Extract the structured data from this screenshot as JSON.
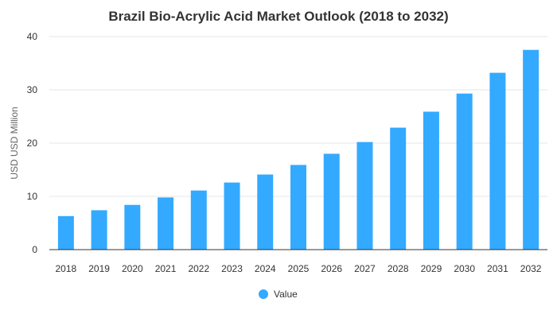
{
  "chart_data": {
    "type": "bar",
    "title": "Brazil Bio-Acrylic Acid Market Outlook (2018 to 2032)",
    "xlabel": "",
    "ylabel": "USD USD Million",
    "categories": [
      "2018",
      "2019",
      "2020",
      "2021",
      "2022",
      "2023",
      "2024",
      "2025",
      "2026",
      "2027",
      "2028",
      "2029",
      "2030",
      "2031",
      "2032"
    ],
    "series": [
      {
        "name": "Value",
        "values": [
          6.3,
          7.4,
          8.4,
          9.8,
          11.1,
          12.6,
          14.1,
          15.9,
          18.0,
          20.2,
          22.9,
          25.9,
          29.3,
          33.2,
          37.5
        ],
        "color": "#33aaff"
      }
    ],
    "ylim": [
      0,
      40
    ],
    "yticks": [
      "0",
      "10",
      "20",
      "30",
      "40"
    ],
    "grid": true,
    "legend": "bottom-center"
  }
}
